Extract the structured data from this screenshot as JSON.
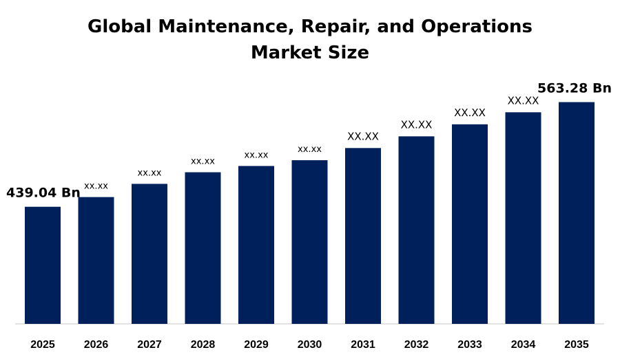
{
  "title_line1": "Global Maintenance, Repair, and Operations",
  "title_line2": "Market Size",
  "chart_data": {
    "type": "bar",
    "title": "Global Maintenance, Repair, and Operations Market Size",
    "xlabel": "",
    "ylabel": "",
    "grid": false,
    "legend": "none",
    "bar_color": "#00205b",
    "axis_color": "#d9d9d9",
    "ylim": [
      300,
      580
    ],
    "categories": [
      "2025",
      "2026",
      "2027",
      "2028",
      "2029",
      "2030",
      "2031",
      "2032",
      "2033",
      "2034",
      "2035"
    ],
    "values": [
      439.04,
      450.5,
      466.2,
      480.0,
      487.4,
      494.3,
      508.7,
      522.6,
      536.9,
      551.2,
      563.28
    ],
    "data_labels": [
      "439.04 Bn",
      "xx.xx",
      "xx.xx",
      "xx.xx",
      "xx.xx",
      "xx.xx",
      "XX.XX",
      "XX.XX",
      "XX.XX",
      "XX.XX",
      "563.28 Bn"
    ]
  }
}
